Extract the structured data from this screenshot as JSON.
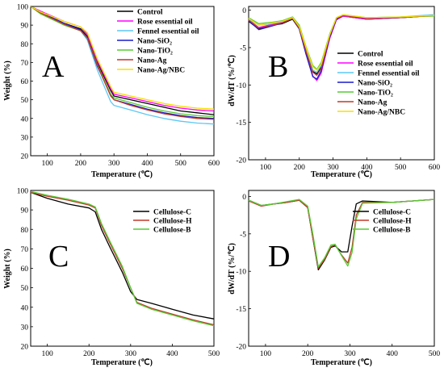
{
  "figure": {
    "panel_labels": [
      "A",
      "B",
      "C",
      "D"
    ]
  },
  "chart_data": [
    {
      "id": "A",
      "type": "line",
      "panel_letter": "A",
      "xlabel": "Temperature (℃)",
      "ylabel": "Weight (%)",
      "xlim": [
        50,
        600
      ],
      "ylim": [
        20,
        100
      ],
      "xticks": [
        100,
        200,
        300,
        400,
        500,
        600
      ],
      "yticks": [
        20,
        30,
        40,
        50,
        60,
        70,
        80,
        90,
        100
      ],
      "grid": false,
      "legend_position": "top-right",
      "series": [
        {
          "name": "Control",
          "color": "#000000",
          "x": [
            50,
            80,
            150,
            200,
            220,
            250,
            290,
            300,
            350,
            400,
            450,
            500,
            550,
            600
          ],
          "y": [
            100,
            97,
            91,
            88,
            84,
            70,
            55,
            52,
            50,
            48,
            46,
            44,
            43,
            42
          ]
        },
        {
          "name": "Rose essential oil",
          "color": "#ff00ff",
          "x": [
            50,
            80,
            150,
            200,
            220,
            250,
            290,
            300,
            350,
            400,
            450,
            500,
            550,
            600
          ],
          "y": [
            100,
            97.5,
            92,
            89,
            85,
            71,
            56,
            53,
            51,
            49,
            47,
            45.5,
            44.5,
            44
          ]
        },
        {
          "name": "Fennel essential oil",
          "color": "#5bc8f5",
          "x": [
            50,
            80,
            150,
            200,
            220,
            250,
            290,
            300,
            350,
            400,
            450,
            500,
            550,
            600
          ],
          "y": [
            100,
            97,
            91,
            87,
            82,
            66,
            49,
            47,
            44.5,
            42,
            40,
            38.5,
            37.5,
            37
          ]
        },
        {
          "name": "Nano-SiO2",
          "color": "#1a1acc",
          "x": [
            50,
            80,
            150,
            200,
            220,
            250,
            290,
            300,
            350,
            400,
            450,
            500,
            550,
            600
          ],
          "y": [
            100,
            97,
            91,
            87.5,
            83,
            68,
            53,
            50,
            47.5,
            45,
            43,
            41.5,
            40.5,
            40
          ]
        },
        {
          "name": "Nano-TiO2",
          "color": "#55cc33",
          "x": [
            50,
            80,
            150,
            200,
            220,
            250,
            290,
            300,
            350,
            400,
            450,
            500,
            550,
            600
          ],
          "y": [
            100,
            96,
            90,
            87,
            83,
            69,
            53,
            51,
            48.5,
            46,
            44,
            42.5,
            41.5,
            41
          ]
        },
        {
          "name": "Nano-Ag",
          "color": "#c0392b",
          "x": [
            50,
            80,
            150,
            200,
            220,
            250,
            290,
            300,
            350,
            400,
            450,
            500,
            550,
            600
          ],
          "y": [
            100,
            96.5,
            90.5,
            87,
            83,
            68.5,
            52,
            50,
            47,
            44.5,
            42.5,
            41,
            40,
            39.5
          ]
        },
        {
          "name": "Nano-Ag/NBC",
          "color": "#f5e000",
          "x": [
            50,
            80,
            150,
            200,
            220,
            250,
            290,
            300,
            350,
            400,
            450,
            500,
            550,
            600
          ],
          "y": [
            100,
            97,
            92,
            89,
            86,
            72,
            57,
            54,
            52,
            50,
            48,
            46.5,
            45.5,
            45
          ]
        }
      ]
    },
    {
      "id": "B",
      "type": "line",
      "panel_letter": "B",
      "xlabel": "Temperature (℃)",
      "ylabel": "dW/dT (%/℃)",
      "xlim": [
        50,
        600
      ],
      "ylim": [
        -20,
        0.5
      ],
      "xticks": [
        100,
        200,
        300,
        400,
        500,
        600
      ],
      "yticks": [
        -20,
        -15,
        -10,
        -5,
        0
      ],
      "grid": false,
      "legend_position": "middle-right",
      "series": [
        {
          "name": "Control",
          "color": "#000000",
          "x": [
            50,
            80,
            120,
            150,
            180,
            200,
            220,
            240,
            252,
            265,
            290,
            310,
            330,
            400,
            500,
            600
          ],
          "y": [
            -1.5,
            -2.5,
            -2,
            -1.8,
            -1.2,
            -2.5,
            -5.5,
            -8.2,
            -8.5,
            -7.6,
            -3.5,
            -1.2,
            -0.8,
            -1.2,
            -1.0,
            -0.7
          ]
        },
        {
          "name": "Rose essential oil",
          "color": "#ff00ff",
          "x": [
            50,
            80,
            120,
            150,
            180,
            200,
            220,
            240,
            252,
            265,
            290,
            310,
            330,
            400,
            500,
            600
          ],
          "y": [
            -1.3,
            -2.3,
            -1.9,
            -1.6,
            -1.0,
            -2.4,
            -5.8,
            -8.8,
            -9.4,
            -8.4,
            -3.8,
            -1.3,
            -0.8,
            -1.2,
            -1.0,
            -0.7
          ]
        },
        {
          "name": "Fennel essential oil",
          "color": "#5bc8f5",
          "x": [
            50,
            80,
            120,
            150,
            180,
            200,
            220,
            240,
            252,
            265,
            290,
            310,
            330,
            400,
            500,
            600
          ],
          "y": [
            -1.2,
            -2.0,
            -1.8,
            -1.5,
            -1.0,
            -2.2,
            -5.2,
            -8.0,
            -8.3,
            -7.4,
            -3.2,
            -1.0,
            -0.6,
            -1.0,
            -0.9,
            -0.6
          ]
        },
        {
          "name": "Nano-SiO2",
          "color": "#1a1acc",
          "x": [
            50,
            80,
            120,
            150,
            180,
            200,
            220,
            240,
            252,
            265,
            290,
            310,
            330,
            400,
            500,
            600
          ],
          "y": [
            -1.4,
            -2.6,
            -2.1,
            -1.7,
            -1.1,
            -2.5,
            -5.9,
            -8.9,
            -9.2,
            -8.1,
            -3.6,
            -1.2,
            -0.7,
            -1.1,
            -1.0,
            -0.7
          ]
        },
        {
          "name": "Nano-TiO2",
          "color": "#55cc33",
          "x": [
            50,
            80,
            120,
            150,
            180,
            200,
            220,
            240,
            252,
            265,
            290,
            310,
            330,
            400,
            500,
            600
          ],
          "y": [
            -1.0,
            -1.8,
            -1.6,
            -1.4,
            -0.9,
            -2.0,
            -4.9,
            -7.4,
            -7.9,
            -7.0,
            -3.2,
            -1.1,
            -0.7,
            -1.0,
            -0.9,
            -0.8
          ]
        },
        {
          "name": "Nano-Ag",
          "color": "#c0392b",
          "x": [
            50,
            80,
            120,
            150,
            180,
            200,
            220,
            240,
            252,
            265,
            290,
            310,
            330,
            400,
            500,
            600
          ],
          "y": [
            -1.3,
            -2.4,
            -2.0,
            -1.7,
            -1.1,
            -2.4,
            -5.5,
            -8.3,
            -8.7,
            -7.8,
            -3.4,
            -1.1,
            -0.7,
            -1.1,
            -1.0,
            -0.7
          ]
        },
        {
          "name": "Nano-Ag/NBC",
          "color": "#f5e000",
          "x": [
            50,
            80,
            120,
            150,
            180,
            200,
            220,
            240,
            252,
            265,
            290,
            310,
            330,
            400,
            500,
            600
          ],
          "y": [
            -1.1,
            -2.0,
            -1.7,
            -1.5,
            -1.0,
            -2.2,
            -5.0,
            -7.6,
            -8.0,
            -7.2,
            -3.3,
            -1.0,
            -0.6,
            -1.0,
            -0.9,
            -0.7
          ]
        }
      ]
    },
    {
      "id": "C",
      "type": "line",
      "panel_letter": "C",
      "xlabel": "Temperature (℃)",
      "ylabel": "Weight (%)",
      "xlim": [
        60,
        500
      ],
      "ylim": [
        20,
        100
      ],
      "xticks": [
        100,
        200,
        300,
        400,
        500
      ],
      "yticks": [
        20,
        30,
        40,
        50,
        60,
        70,
        80,
        90,
        100
      ],
      "grid": false,
      "legend_position": "top-right",
      "series": [
        {
          "name": "Cellulose-C",
          "color": "#000000",
          "x": [
            60,
            100,
            150,
            200,
            215,
            230,
            250,
            280,
            300,
            315,
            350,
            400,
            450,
            500
          ],
          "y": [
            99,
            96,
            93,
            91,
            89,
            80,
            71,
            58,
            48,
            44,
            42,
            39,
            36,
            34
          ]
        },
        {
          "name": "Cellulose-H",
          "color": "#c0392b",
          "x": [
            60,
            100,
            150,
            200,
            215,
            230,
            250,
            280,
            300,
            315,
            350,
            400,
            450,
            500
          ],
          "y": [
            99,
            97,
            95,
            92.5,
            91,
            82,
            73,
            60,
            50,
            42.5,
            39.5,
            36.5,
            33.5,
            31
          ]
        },
        {
          "name": "Cellulose-B",
          "color": "#55cc33",
          "x": [
            60,
            100,
            150,
            200,
            215,
            230,
            250,
            280,
            300,
            315,
            350,
            400,
            450,
            500
          ],
          "y": [
            99.5,
            97.5,
            95.5,
            93,
            91.5,
            83,
            74,
            61,
            50,
            42,
            39,
            36,
            33,
            30.5
          ]
        }
      ]
    },
    {
      "id": "D",
      "type": "line",
      "panel_letter": "D",
      "xlabel": "Temperature (℃)",
      "ylabel": "dW/dT (%/℃)",
      "xlim": [
        60,
        500
      ],
      "ylim": [
        -20,
        0.8
      ],
      "xticks": [
        100,
        200,
        300,
        400,
        500
      ],
      "yticks": [
        -20,
        -15,
        -10,
        -5,
        0
      ],
      "grid": false,
      "legend_position": "top-right",
      "series": [
        {
          "name": "Cellulose-C",
          "color": "#000000",
          "x": [
            60,
            90,
            120,
            150,
            180,
            200,
            212,
            225,
            240,
            255,
            265,
            280,
            295,
            305,
            315,
            330,
            400,
            500
          ],
          "y": [
            -0.5,
            -1.2,
            -1.0,
            -0.8,
            -0.5,
            -1.5,
            -5.5,
            -9.8,
            -8.5,
            -6.8,
            -6.6,
            -7.4,
            -7.4,
            -4.0,
            -1.0,
            -0.6,
            -0.8,
            -0.4
          ]
        },
        {
          "name": "Cellulose-H",
          "color": "#c0392b",
          "x": [
            60,
            90,
            120,
            150,
            180,
            200,
            212,
            225,
            240,
            255,
            265,
            280,
            295,
            305,
            315,
            330,
            400,
            500
          ],
          "y": [
            -0.6,
            -1.3,
            -1.0,
            -0.8,
            -0.5,
            -1.5,
            -5.5,
            -9.6,
            -8.4,
            -6.7,
            -6.5,
            -7.8,
            -8.9,
            -6.8,
            -2.5,
            -0.8,
            -0.8,
            -0.4
          ]
        },
        {
          "name": "Cellulose-B",
          "color": "#55cc33",
          "x": [
            60,
            90,
            120,
            150,
            180,
            200,
            212,
            225,
            240,
            255,
            265,
            280,
            295,
            305,
            315,
            330,
            400,
            500
          ],
          "y": [
            -0.5,
            -1.2,
            -1.0,
            -0.7,
            -0.4,
            -1.3,
            -5.0,
            -9.4,
            -8.2,
            -6.5,
            -6.4,
            -7.9,
            -9.3,
            -7.5,
            -3.0,
            -0.9,
            -0.8,
            -0.4
          ]
        }
      ]
    }
  ]
}
